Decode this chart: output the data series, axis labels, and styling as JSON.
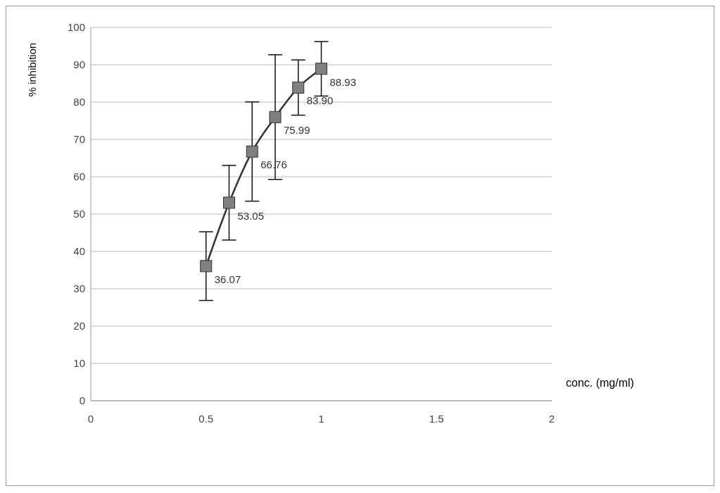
{
  "chart_data": {
    "type": "line",
    "xlabel": "conc. (mg/ml)",
    "ylabel": "% inhibition",
    "x": [
      0.5,
      0.6,
      0.7,
      0.8,
      0.9,
      1.0
    ],
    "series": [
      {
        "color": "#333333",
        "values": [
          36.07,
          53.05,
          66.76,
          75.99,
          83.9,
          88.93
        ],
        "errors": [
          9.2,
          10,
          13.3,
          16.7,
          7.4,
          7.3
        ],
        "value_labels": [
          "36.07",
          "53.05",
          "66.76",
          "75.99",
          "83.90",
          "88.93"
        ]
      }
    ],
    "xlim": [
      0,
      2
    ],
    "xticks": [
      0,
      0.5,
      1,
      1.5,
      2
    ],
    "ylim": [
      0,
      100
    ],
    "yticks": [
      0,
      10,
      20,
      30,
      40,
      50,
      60,
      70,
      80,
      90,
      100
    ],
    "grid": "y",
    "marker": "square",
    "line_style": "solid"
  }
}
